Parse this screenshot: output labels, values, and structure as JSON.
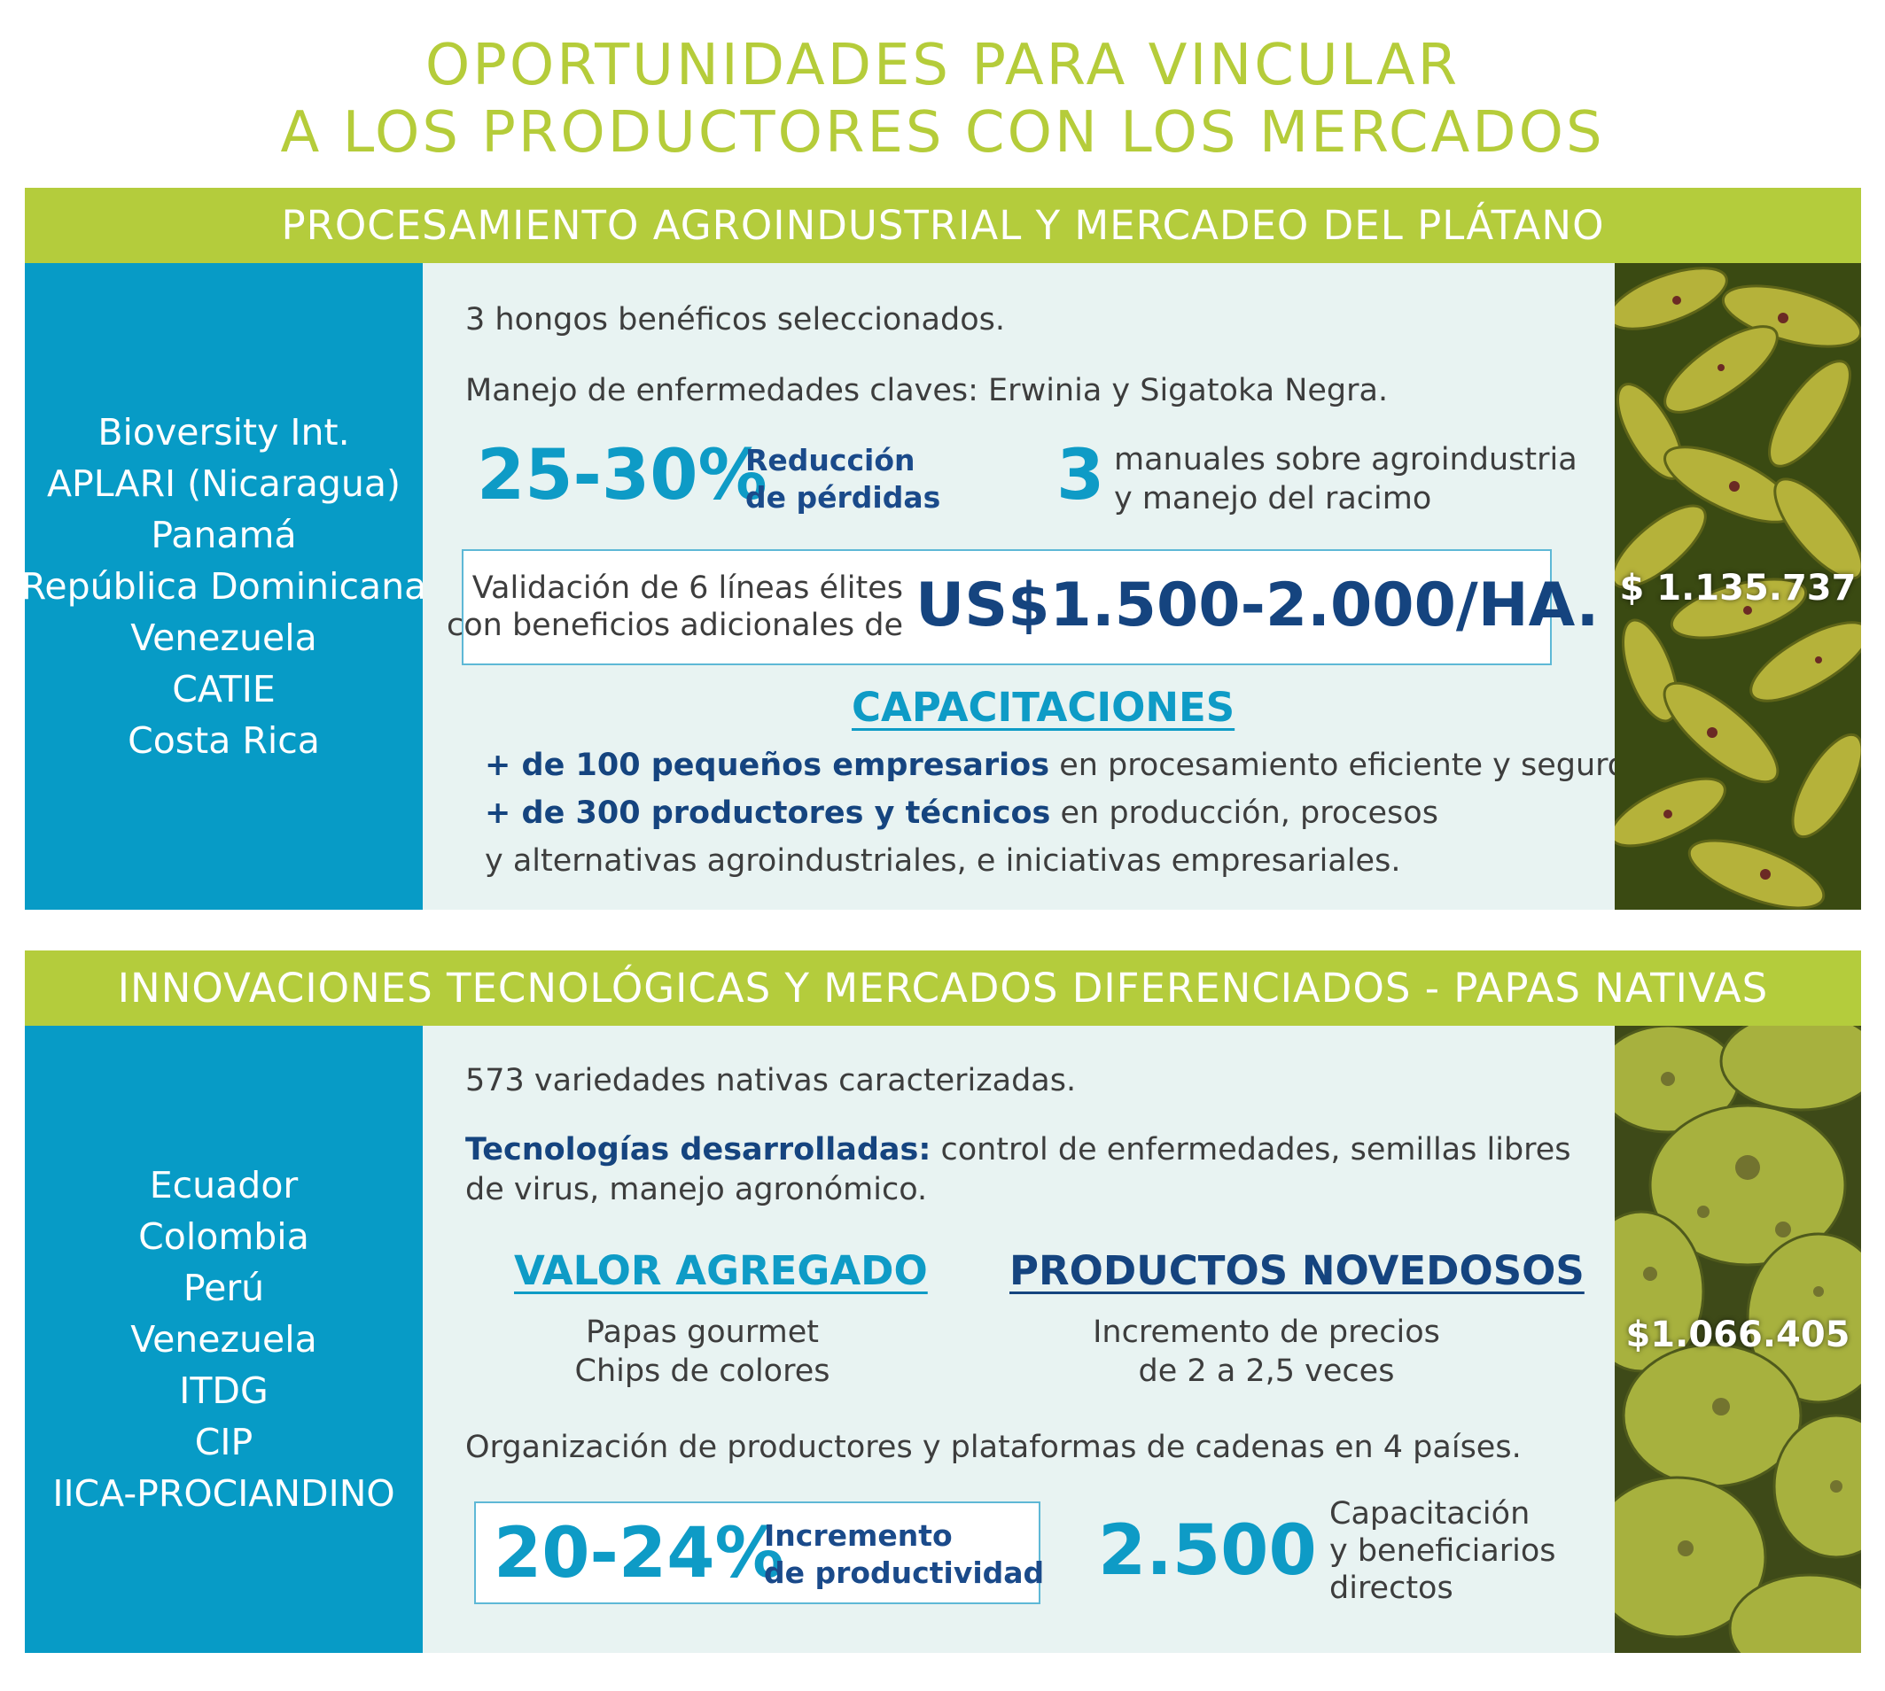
{
  "title": {
    "line1": "OPORTUNIDADES PARA VINCULAR",
    "line2": "A LOS PRODUCTORES CON LOS MERCADOS"
  },
  "section1": {
    "header": "PROCESAMIENTO AGROINDUSTRIAL Y MERCADEO DEL PLÁTANO",
    "partners": [
      "Bioversity Int.",
      "APLARI (Nicaragua)",
      "Panamá",
      "República Dominicana",
      "Venezuela",
      "CATIE",
      "Costa Rica"
    ],
    "line1": "3 hongos benéficos seleccionados.",
    "line2": "Manejo de enfermedades claves: Erwinia y Sigatoka Negra.",
    "stat1_value": "25-30%",
    "stat1_label1": "Reducción",
    "stat1_label2": "de pérdidas",
    "stat2_value": "3",
    "stat2_label1": "manuales sobre agroindustria",
    "stat2_label2": "y manejo del racimo",
    "validation_line1": "Validación de 6 líneas élites",
    "validation_line2": "con beneficios adicionales de",
    "validation_value": "US$1.500-2.000/HA.",
    "training_title": "CAPACITACIONES",
    "training1_bold": "+ de 100 pequeños empresarios",
    "training1_rest": " en procesamiento eficiente y seguro.",
    "training2_bold": "+ de 300 productores y técnicos",
    "training2_rest": " en producción, procesos",
    "training3": "y alternativas agroindustriales, e iniciativas empresariales.",
    "amount": "$ 1.135.737",
    "photo_icon": "plantain-photo"
  },
  "section2": {
    "header": "INNOVACIONES TECNOLÓGICAS Y MERCADOS DIFERENCIADOS - PAPAS NATIVAS",
    "partners": [
      "Ecuador",
      "Colombia",
      "Perú",
      "Venezuela",
      "ITDG",
      "CIP",
      "IICA-PROCIANDINO"
    ],
    "line1": "573 variedades nativas caracterizadas.",
    "tech_bold": "Tecnologías desarrolladas:",
    "tech_rest": " control de enfermedades, semillas libres",
    "tech_line2": "de virus, manejo agronómico.",
    "value_title": "VALOR AGREGADO",
    "value_line1": "Papas gourmet",
    "value_line2": "Chips de colores",
    "products_title": "PRODUCTOS NOVEDOSOS",
    "products_line1": "Incremento de precios",
    "products_line2": "de 2 a 2,5 veces",
    "org_line": "Organización de productores y plataformas de cadenas en 4 países.",
    "stat1_value": "20-24%",
    "stat1_label1": "Incremento",
    "stat1_label2": "de productividad",
    "stat2_value": "2.500",
    "stat2_label1": "Capacitación",
    "stat2_label2": "y beneficiarios",
    "stat2_label3": "directos",
    "amount": "$1.066.405",
    "photo_icon": "potato-photo"
  },
  "colors": {
    "green": "#b4cc3c",
    "blue": "#079bc6",
    "navy": "#15447f",
    "panel": "#e8f3f2"
  }
}
